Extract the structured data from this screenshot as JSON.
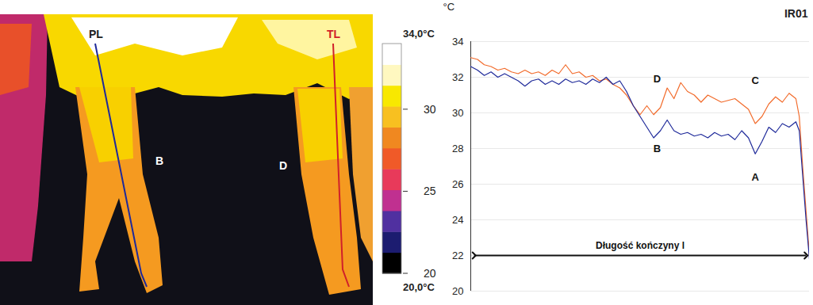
{
  "chart_data": [
    {
      "type": "thermal_image",
      "labels": [
        "PL",
        "TL",
        "B",
        "D"
      ],
      "color_bar": {
        "range": [
          20,
          34
        ],
        "ticks": [
          20,
          25,
          30
        ],
        "end_labels": [
          {
            "value": 34,
            "label": "34,0°C"
          },
          {
            "value": 20,
            "label": "20,0°C"
          }
        ]
      }
    },
    {
      "type": "line",
      "title": "IR01",
      "y_label": "°C",
      "x": [
        0,
        2,
        4,
        6,
        8,
        10,
        12,
        14,
        16,
        18,
        20,
        22,
        24,
        26,
        28,
        30,
        32,
        34,
        36,
        38,
        40,
        42,
        44,
        46,
        48,
        50,
        52,
        54,
        56,
        58,
        60,
        62,
        64,
        66,
        68,
        70,
        72,
        74,
        76,
        78,
        80,
        82,
        84,
        86,
        88,
        90,
        92,
        94,
        96,
        97,
        98,
        99,
        100
      ],
      "series": [
        {
          "color": "#f26b2b",
          "values": [
            33.1,
            33.0,
            32.7,
            32.6,
            32.4,
            32.5,
            32.3,
            32.2,
            32.4,
            32.2,
            32.3,
            32.1,
            32.4,
            32.2,
            32.7,
            32.2,
            32.3,
            32.0,
            32.1,
            31.8,
            31.9,
            31.6,
            31.4,
            31.0,
            30.4,
            29.9,
            30.4,
            29.9,
            30.3,
            31.4,
            30.8,
            31.7,
            31.2,
            31.0,
            30.6,
            31.0,
            30.8,
            30.6,
            30.7,
            30.8,
            30.5,
            30.2,
            29.4,
            29.8,
            30.5,
            30.9,
            30.6,
            31.1,
            30.8,
            29.8,
            27.0,
            24.5,
            22.0
          ]
        },
        {
          "color": "#1f2a9a",
          "values": [
            32.6,
            32.4,
            32.1,
            32.3,
            32.0,
            32.2,
            32.0,
            31.8,
            31.5,
            31.8,
            31.9,
            31.6,
            31.8,
            31.6,
            31.9,
            31.7,
            31.8,
            31.6,
            31.9,
            31.7,
            32.0,
            31.6,
            31.8,
            31.2,
            30.4,
            29.8,
            29.2,
            28.6,
            29.0,
            29.6,
            29.0,
            28.8,
            28.9,
            28.7,
            28.8,
            28.6,
            28.9,
            28.7,
            28.8,
            28.5,
            29.0,
            28.6,
            27.7,
            28.4,
            29.2,
            28.9,
            29.4,
            29.2,
            29.5,
            29.0,
            26.5,
            24.0,
            21.8
          ]
        }
      ],
      "xlim": [
        0,
        100
      ],
      "ylim": [
        20,
        34
      ],
      "yticks": [
        20,
        22,
        24,
        26,
        28,
        30,
        32,
        34
      ],
      "grid": true,
      "tick_labels": "y",
      "annotations": [
        {
          "text": "D",
          "x": 55,
          "y": 31.9
        },
        {
          "text": "C",
          "x": 84,
          "y": 31.8
        },
        {
          "text": "B",
          "x": 55,
          "y": 28.0
        },
        {
          "text": "A",
          "x": 84,
          "y": 26.4
        }
      ],
      "span": {
        "text": "Długość kończyny l",
        "x": [
          1,
          99
        ],
        "y": 22
      }
    }
  ]
}
